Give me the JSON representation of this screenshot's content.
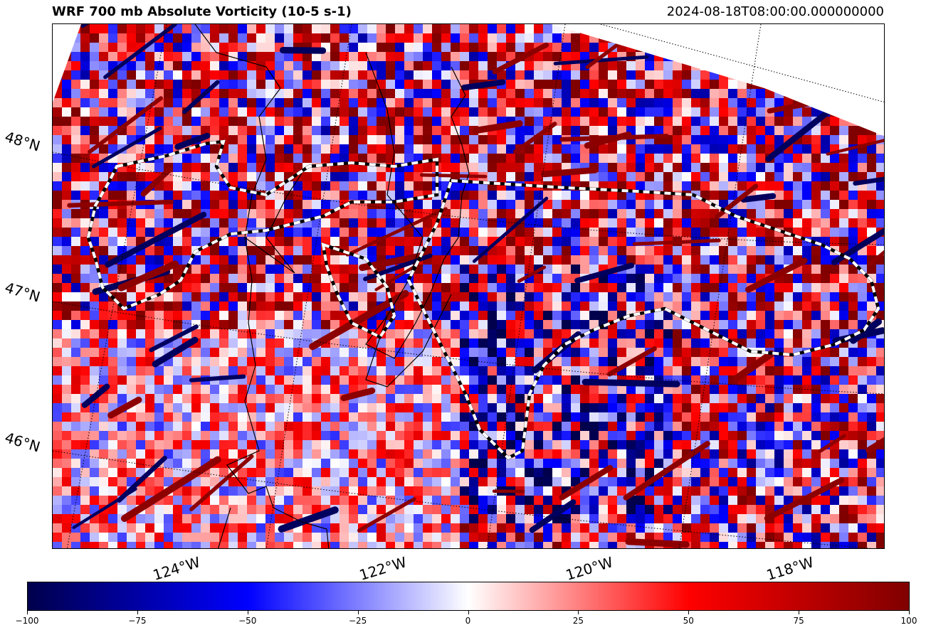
{
  "title": "WRF 700 mb Absolute Vorticity (10-5 s-1)",
  "valid_time": "2024-08-18T08:00:00.000000000",
  "latitude_labels": [
    "48°N",
    "47°N",
    "46°N"
  ],
  "longitude_labels": [
    "124°W",
    "122°W",
    "120°W",
    "118°W"
  ],
  "colorbar": {
    "colormap": "seismic",
    "colors": [
      "#00004c",
      "#0000ff",
      "#ffffff",
      "#ff0000",
      "#800000"
    ],
    "min": -100,
    "max": 100,
    "ticks": [
      "−100",
      "−75",
      "−50",
      "−25",
      "0",
      "25",
      "50",
      "75",
      "100"
    ]
  },
  "contour_styles": {
    "coastline": "#000000",
    "dashed_outline": "#000000",
    "dashed_outline_inner": "#ffffff",
    "gridlines": "#000000"
  }
}
